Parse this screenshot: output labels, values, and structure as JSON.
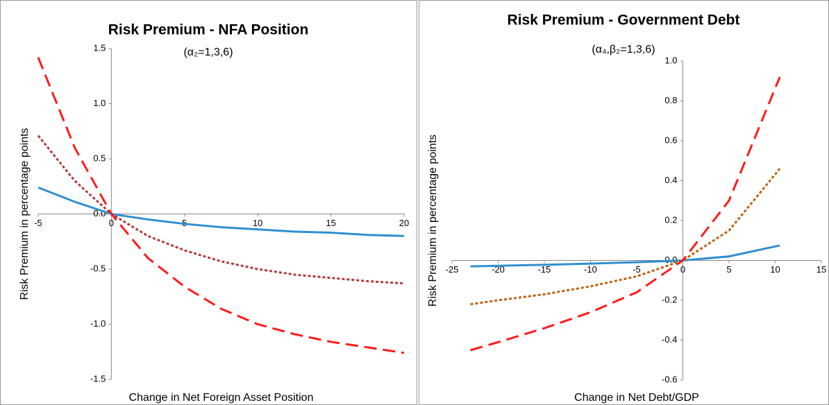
{
  "chart_data": [
    {
      "type": "line",
      "title": "Risk Premium - NFA Position",
      "subtitle": "(α₂=1,3,6)",
      "x_label": "Change in Net Foreign Asset Position",
      "y_label": "Risk Premium in percentage points",
      "x": [
        -5,
        -2.5,
        0,
        2.5,
        5,
        7.5,
        10,
        12.5,
        15,
        17.5,
        20
      ],
      "series": [
        {
          "color": "#2f8fd0",
          "dash": "solid",
          "values": [
            0.24,
            0.11,
            0,
            -0.05,
            -0.09,
            -0.12,
            -0.14,
            -0.16,
            -0.17,
            -0.19,
            -0.2
          ]
        },
        {
          "color": "#b03a3a",
          "dash": "dotted",
          "values": [
            0.71,
            0.3,
            0,
            -0.2,
            -0.33,
            -0.43,
            -0.5,
            -0.55,
            -0.58,
            -0.61,
            -0.63
          ]
        },
        {
          "color": "#ff1a1a",
          "dash": "dashed",
          "values": [
            1.42,
            0.6,
            0,
            -0.4,
            -0.66,
            -0.86,
            -1.0,
            -1.09,
            -1.16,
            -1.21,
            -1.26
          ]
        }
      ],
      "xlim": [
        -5,
        20
      ],
      "xticks": [
        -5,
        0,
        5,
        10,
        15,
        20
      ],
      "ylim": [
        -1.5,
        1.5
      ],
      "yticks": [
        -1.5,
        {
          "value": -1,
          "label": "-1.0"
        },
        -0.5,
        {
          "value": 0,
          "label": "0.0"
        },
        0.5,
        {
          "value": 1,
          "label": "1.0"
        },
        1.5
      ]
    },
    {
      "type": "line",
      "title": "Risk Premium - Government Debt",
      "subtitle": "(α₄,β₂=1,3,6)",
      "x_label": "Change in Net Debt/GDP",
      "y_label": "Risk Premium in percentage points",
      "x": [
        -23,
        -20,
        -15,
        -10,
        -5,
        0,
        5,
        10.5
      ],
      "series": [
        {
          "color": "#2f8fd0",
          "dash": "solid",
          "values": [
            -0.03,
            -0.027,
            -0.022,
            -0.016,
            -0.009,
            0,
            0.02,
            0.075
          ]
        },
        {
          "color": "#c0600a",
          "dash": "dotted",
          "values": [
            -0.22,
            -0.2,
            -0.17,
            -0.13,
            -0.08,
            0,
            0.15,
            0.46
          ]
        },
        {
          "color": "#ff1a1a",
          "dash": "dashed",
          "values": [
            -0.45,
            -0.41,
            -0.34,
            -0.26,
            -0.16,
            0,
            0.3,
            0.92
          ]
        }
      ],
      "xlim": [
        -25,
        15
      ],
      "xticks": [
        -25,
        -20,
        -15,
        -10,
        -5,
        0,
        5,
        10,
        15
      ],
      "ylim": [
        -0.6,
        1
      ],
      "yticks": [
        -0.6,
        -0.4,
        -0.2,
        {
          "value": 0,
          "label": "0.0"
        },
        0.2,
        0.4,
        0.6,
        0.8,
        {
          "value": 1,
          "label": "1.0"
        }
      ]
    }
  ]
}
